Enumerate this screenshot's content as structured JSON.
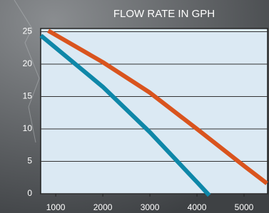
{
  "chart_data": {
    "type": "line",
    "title": "FLOW RATE IN GPH",
    "xlim": [
      680,
      5500
    ],
    "xticks": [
      1000,
      2000,
      3000,
      4000,
      5000
    ],
    "ylim": [
      0,
      25.5
    ],
    "yticks": [
      0,
      5,
      10,
      15,
      20,
      25
    ],
    "grid": true,
    "series": [
      {
        "color": "#0f87a8",
        "x": [
          720,
          2000,
          3000,
          4000,
          4230
        ],
        "values": [
          24.2,
          16.5,
          9.5,
          1.8,
          0
        ]
      },
      {
        "color": "#d9541e",
        "x": [
          880,
          2000,
          3000,
          4000,
          5000,
          5450
        ],
        "values": [
          25,
          20.3,
          15.6,
          10,
          4.3,
          1.8
        ]
      }
    ]
  }
}
